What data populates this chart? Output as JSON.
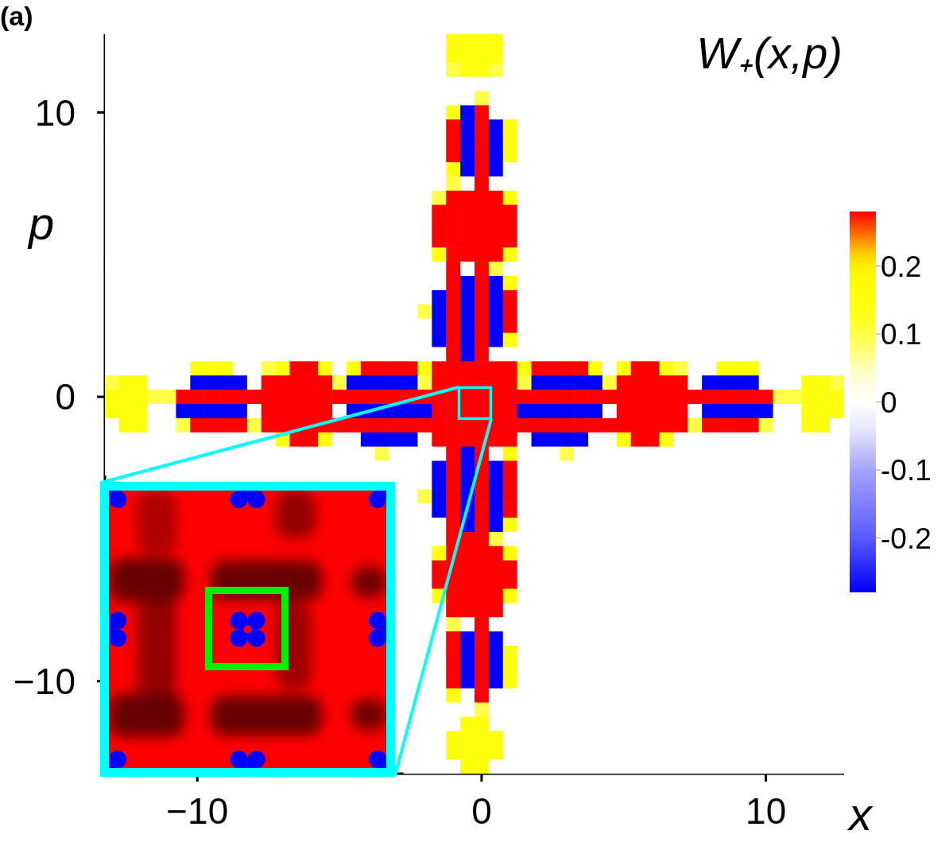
{
  "chart_data": {
    "type": "heatmap",
    "title": "W₊(x,p)",
    "xlabel": "x",
    "ylabel": "p",
    "annotations": [
      "(a)"
    ],
    "categories": [
      null,
      null,
      null,
      null,
      null,
      null,
      "−10",
      null,
      null,
      null,
      null,
      null,
      null,
      null,
      null,
      null,
      null,
      null,
      null,
      null,
      null,
      null,
      null,
      null,
      null,
      null,
      "0",
      null,
      null,
      null,
      null,
      null,
      null,
      null,
      null,
      null,
      null,
      null,
      null,
      null,
      null,
      null,
      null,
      null,
      null,
      null,
      "10",
      null,
      null,
      null,
      null,
      null
    ],
    "y_categories": [
      null,
      null,
      null,
      null,
      null,
      "10",
      null,
      null,
      null,
      null,
      null,
      null,
      null,
      null,
      null,
      null,
      null,
      null,
      null,
      null,
      null,
      null,
      null,
      null,
      null,
      "0",
      null,
      null,
      null,
      null,
      null,
      null,
      null,
      null,
      null,
      null,
      null,
      null,
      null,
      null,
      null,
      null,
      null,
      null,
      null,
      "−10",
      null,
      null,
      null,
      null,
      null,
      null
    ],
    "clim": [
      -0.28,
      0.28
    ],
    "cticks": [
      -0.2,
      -0.1,
      0,
      0.1,
      0.2
    ],
    "cells": [
      [
        0,
        0,
        0,
        0,
        0,
        0,
        0,
        0,
        0,
        0,
        0,
        0,
        0,
        0,
        0,
        0,
        0,
        0,
        0,
        0,
        0,
        0,
        0,
        0,
        0.15,
        0.15,
        0.15,
        0.15,
        0,
        0,
        0,
        0,
        0,
        0,
        0,
        0,
        0,
        0,
        0,
        0,
        0,
        0,
        0,
        0,
        0,
        0,
        0,
        0,
        0,
        0,
        0,
        0
      ],
      [
        0,
        0,
        0,
        0,
        0,
        0,
        0,
        0,
        0,
        0,
        0,
        0,
        0,
        0,
        0,
        0,
        0,
        0,
        0,
        0,
        0,
        0,
        0,
        0,
        0.15,
        0.15,
        0.15,
        0.15,
        0,
        0,
        0,
        0,
        0,
        0,
        0,
        0,
        0,
        0,
        0,
        0,
        0,
        0,
        0,
        0,
        0,
        0,
        0,
        null,
        0,
        0,
        0,
        0
      ],
      [
        0,
        0,
        0,
        0,
        0,
        0,
        0,
        0,
        0,
        0,
        0,
        0,
        0,
        0,
        0,
        0,
        0,
        0,
        0,
        0,
        0,
        0,
        0,
        0,
        0.1,
        0.15,
        0.15,
        0.1,
        0,
        0,
        0,
        0,
        0,
        0,
        0,
        0,
        0,
        0,
        0,
        0,
        0,
        0,
        0,
        0,
        0,
        0,
        0,
        0,
        0,
        0,
        0,
        0
      ],
      [
        0,
        0,
        0,
        0,
        0,
        0,
        0,
        0,
        0,
        0,
        0,
        0,
        0,
        0,
        0,
        0,
        0,
        0,
        0,
        0,
        0,
        0,
        0,
        0,
        0,
        0,
        0,
        0,
        0,
        0,
        0,
        0,
        0,
        0,
        0,
        0,
        0,
        0,
        0,
        0,
        0,
        0,
        0,
        0,
        0,
        0,
        0,
        0,
        0,
        0,
        0,
        0
      ],
      [
        0,
        0,
        0,
        0,
        0,
        0,
        0,
        0,
        0,
        0,
        0,
        0,
        0,
        0,
        0,
        0,
        0,
        0,
        0,
        0,
        0,
        0,
        0,
        0,
        0,
        0,
        0.1,
        0,
        0,
        0,
        0,
        0,
        0,
        0,
        0,
        0,
        0,
        0,
        0,
        0,
        0,
        0,
        0,
        0,
        0,
        0,
        0,
        0,
        0,
        0,
        0,
        0
      ],
      [
        0,
        0,
        0,
        0,
        0,
        0,
        0,
        0,
        0,
        0,
        0,
        0,
        0,
        0,
        0,
        0,
        0,
        0,
        0,
        0,
        0,
        0,
        0,
        0,
        0.15,
        -0.28,
        0.28,
        0,
        0,
        0,
        0,
        0,
        0,
        0,
        0,
        0,
        0,
        0,
        0,
        0,
        0,
        0,
        0,
        0,
        0,
        0,
        0,
        0,
        0,
        0,
        0,
        0
      ],
      [
        0,
        0,
        0,
        0,
        0,
        0,
        0,
        0,
        0,
        0,
        0,
        0,
        0,
        0,
        0,
        0,
        0,
        0,
        0,
        0,
        0,
        0,
        0,
        0,
        0.28,
        -0.28,
        0.28,
        -0.28,
        0.15,
        0,
        0,
        0,
        0,
        0,
        0,
        0,
        0,
        0,
        0,
        0,
        0,
        0,
        0,
        0,
        0,
        0,
        0,
        0,
        0,
        0,
        0,
        0
      ],
      [
        0,
        0,
        0,
        0,
        0,
        0,
        0,
        0,
        0,
        0,
        0,
        0,
        0,
        0,
        0,
        0,
        0,
        0,
        0,
        0,
        0,
        0,
        0,
        0,
        0.28,
        -0.28,
        0.28,
        -0.28,
        0.15,
        0,
        0,
        0,
        0,
        0,
        0,
        0,
        0,
        0,
        0,
        0,
        0,
        0,
        0,
        0,
        0,
        0,
        0,
        0,
        0,
        0,
        0,
        0
      ],
      [
        0,
        0,
        0,
        0,
        0,
        0,
        0,
        0,
        0,
        0,
        0,
        0,
        0,
        0,
        0,
        0,
        0,
        0,
        0,
        0,
        0,
        0,
        0,
        0,
        0.28,
        -0.28,
        0.28,
        -0.28,
        0.15,
        0,
        0,
        0,
        0,
        0,
        0,
        0,
        0,
        0,
        0,
        0,
        0,
        0,
        0,
        0,
        0,
        0,
        0,
        0,
        0,
        0,
        0,
        0
      ],
      [
        0,
        0,
        0,
        0,
        0,
        0,
        0,
        0,
        0,
        0,
        0,
        0,
        0,
        0,
        0,
        0,
        0,
        0,
        0,
        0,
        0,
        0,
        0,
        0,
        0.15,
        -0.28,
        0.28,
        -0.28,
        0,
        0,
        0,
        0,
        0,
        0,
        0,
        0,
        0,
        0,
        0,
        0,
        0,
        0,
        0,
        0,
        0,
        0,
        0,
        0,
        0,
        0,
        0,
        0
      ],
      [
        0,
        0,
        0,
        0,
        0,
        0,
        0,
        0,
        0,
        0,
        0,
        0,
        0,
        0,
        0,
        0,
        0,
        0,
        0,
        0,
        0,
        0,
        0,
        0,
        0.1,
        0,
        0.28,
        0,
        0,
        0,
        0,
        0,
        0,
        0,
        0,
        0,
        0,
        0,
        0,
        0,
        0,
        0,
        0,
        0,
        0,
        0,
        0,
        0,
        0,
        0,
        0,
        0
      ],
      [
        0,
        0,
        0,
        0,
        0,
        0,
        0,
        0,
        0,
        0,
        0,
        0,
        0,
        0,
        0,
        0,
        0,
        0,
        0,
        0,
        0,
        0,
        0,
        0.1,
        0.28,
        0.28,
        0.28,
        0.28,
        0.15,
        0,
        0,
        0,
        0,
        0,
        0,
        0,
        0,
        0,
        0,
        0,
        0,
        0,
        0,
        0,
        0,
        0,
        0,
        0,
        0,
        0,
        0,
        0
      ],
      [
        0,
        0,
        0,
        0,
        0,
        0,
        0,
        0,
        0,
        0,
        0,
        0,
        0,
        0,
        0,
        0,
        0,
        0,
        0,
        0,
        0,
        0,
        0,
        0.28,
        0.28,
        0.28,
        0.28,
        0.28,
        0.28,
        0,
        0,
        0,
        0,
        0,
        0,
        0,
        0,
        0,
        0,
        0,
        0,
        0,
        0,
        0,
        0,
        0,
        0,
        0,
        0,
        0,
        0,
        0
      ],
      [
        0,
        0,
        0,
        0,
        0,
        0,
        0,
        0,
        0,
        0,
        0,
        0,
        0,
        0,
        0,
        0,
        0,
        0,
        0,
        0,
        0,
        0,
        0,
        0.28,
        0.28,
        0.28,
        0.28,
        0.28,
        0.28,
        0,
        0,
        0,
        0,
        0,
        0,
        0,
        0,
        0,
        0,
        0,
        0,
        0,
        0,
        0,
        0,
        0,
        0,
        0,
        0,
        0,
        0,
        0
      ],
      [
        0,
        0,
        0,
        0,
        0,
        0,
        0,
        0,
        0,
        0,
        0,
        0,
        0,
        0,
        0,
        0,
        0,
        0,
        0,
        0,
        0,
        0,
        0,
        0.28,
        0.28,
        0.28,
        0.28,
        0.28,
        0.28,
        0,
        0,
        0,
        0,
        0,
        0,
        0,
        0,
        0,
        0,
        0,
        0,
        0,
        0,
        0,
        0,
        0,
        0,
        0,
        0,
        0,
        0,
        0
      ],
      [
        0,
        0,
        0,
        0,
        0,
        0,
        0,
        0,
        0,
        0,
        0,
        0,
        0,
        0,
        0,
        0,
        0,
        0,
        0,
        0,
        0,
        0,
        0,
        0.15,
        0.28,
        0.28,
        0.28,
        0.28,
        0.15,
        0,
        0,
        0,
        0,
        0,
        0,
        0,
        0,
        0,
        0,
        0,
        0,
        0,
        0,
        0,
        0,
        0,
        0,
        0,
        0,
        0,
        0,
        0
      ],
      [
        0,
        0,
        0,
        0,
        0,
        0,
        0,
        0,
        0,
        0,
        0,
        0,
        0,
        0,
        0,
        0,
        0,
        0,
        0,
        0,
        0,
        0,
        0,
        0,
        0.28,
        0,
        0.28,
        0.1,
        0,
        0,
        0,
        0,
        0,
        0,
        0,
        0,
        0,
        0,
        0,
        0,
        0,
        0,
        0,
        0,
        0,
        0,
        0,
        0,
        0,
        0,
        0,
        0
      ],
      [
        0,
        0,
        0,
        0,
        0,
        0,
        0,
        0,
        0,
        0,
        0,
        0,
        0,
        0,
        0,
        0,
        0,
        0,
        0,
        0,
        0,
        0,
        0,
        0,
        0.28,
        -0.28,
        0.28,
        -0.28,
        0.15,
        0,
        0,
        0,
        0,
        0,
        0,
        0,
        0,
        0,
        0,
        0,
        0,
        0,
        0,
        0,
        0,
        0,
        0,
        0,
        0,
        0,
        0,
        0
      ],
      [
        0,
        0,
        0,
        0,
        0,
        0,
        0,
        0,
        0,
        0,
        0,
        0,
        0,
        0,
        0,
        0,
        0,
        0,
        0,
        0,
        0,
        0,
        0,
        -0.28,
        0.28,
        -0.28,
        0.28,
        -0.28,
        0.28,
        0,
        0,
        0,
        0,
        0,
        0,
        0,
        0,
        0,
        0,
        0,
        0,
        0,
        0,
        0,
        0,
        0,
        0,
        0,
        0,
        0,
        0,
        0
      ],
      [
        0,
        0,
        0,
        0,
        0,
        0,
        0,
        0,
        0,
        0,
        0,
        0,
        0,
        0,
        0,
        0,
        0,
        0,
        0,
        0,
        0,
        0,
        0.1,
        -0.28,
        0.28,
        -0.28,
        0.28,
        -0.28,
        0.28,
        0,
        0,
        0,
        0,
        0,
        0,
        0,
        0,
        0,
        0,
        0,
        0,
        0,
        0,
        0,
        0,
        0,
        0,
        0,
        0,
        0,
        0,
        0
      ],
      [
        0,
        0,
        0,
        0,
        0,
        0,
        0,
        0,
        0,
        0,
        0,
        0,
        0,
        0,
        0,
        0,
        0,
        0,
        0,
        0,
        0,
        0,
        0,
        -0.28,
        0.28,
        -0.28,
        0.28,
        -0.28,
        0.28,
        0,
        0,
        0,
        0,
        0,
        0,
        0,
        0,
        0,
        0,
        0,
        0,
        0,
        0,
        0,
        0,
        0,
        0,
        0,
        0,
        0,
        0,
        0
      ],
      [
        0,
        0,
        0,
        0,
        0,
        0,
        0,
        0,
        0,
        0,
        0,
        0,
        0,
        0,
        0,
        0,
        0,
        0,
        0,
        0,
        0,
        0,
        0,
        -0.28,
        0.28,
        -0.28,
        0.28,
        -0.28,
        0.15,
        0,
        0,
        0,
        0,
        0,
        0,
        0,
        0,
        0,
        0,
        0,
        0,
        0,
        0,
        0,
        0,
        0,
        0,
        0,
        0,
        0,
        0,
        0
      ],
      [
        0,
        0,
        0,
        0,
        0,
        0,
        0,
        0,
        0,
        0,
        0,
        0,
        0,
        0,
        0,
        0,
        0,
        0,
        0,
        0,
        0,
        0,
        0,
        0,
        0.28,
        -0.28,
        0.28,
        0,
        0,
        0,
        0,
        0,
        0,
        0,
        0,
        0,
        0,
        0,
        0,
        0,
        0,
        0,
        0,
        0,
        0,
        0,
        0,
        0,
        0,
        0,
        0,
        0
      ],
      [
        0,
        0,
        0,
        0,
        0,
        0,
        0.15,
        0.15,
        0.15,
        0,
        0,
        0.1,
        0.15,
        0.28,
        0.28,
        0.15,
        0,
        0.15,
        0.28,
        0.28,
        0.28,
        0.28,
        0.15,
        0.28,
        0.28,
        0.28,
        0.28,
        0.28,
        0.28,
        0.15,
        0.28,
        0.28,
        0.28,
        0.28,
        0.15,
        0,
        0.15,
        0.28,
        0.28,
        0.15,
        0.1,
        0,
        0,
        0.15,
        0.15,
        0.15,
        0,
        0,
        0,
        0,
        0,
        0
      ],
      [
        0.1,
        0.15,
        0.15,
        0,
        0,
        0,
        -0.28,
        -0.28,
        -0.28,
        -0.28,
        0,
        0.28,
        0.28,
        0.28,
        0.28,
        0.28,
        0.1,
        -0.28,
        -0.28,
        -0.28,
        -0.28,
        -0.28,
        0.1,
        0.28,
        0.28,
        0.28,
        0.28,
        0.28,
        0.28,
        0.1,
        -0.28,
        -0.28,
        -0.28,
        -0.28,
        -0.28,
        0.1,
        0.28,
        0.28,
        0.28,
        0.28,
        0.28,
        0,
        -0.28,
        -0.28,
        -0.28,
        -0.28,
        0,
        0,
        0,
        0.15,
        0.15,
        0.1
      ],
      [
        0.15,
        0.15,
        0.15,
        0.1,
        0.1,
        0.28,
        0.28,
        0.28,
        0.28,
        0.28,
        0.28,
        0.28,
        0.28,
        0.28,
        0.28,
        0.28,
        0.28,
        0.28,
        0.28,
        0.28,
        0.28,
        0.28,
        0.28,
        0.28,
        0.28,
        0.28,
        0.28,
        0.28,
        0.28,
        0.28,
        0.28,
        0.28,
        0.28,
        0.28,
        0.28,
        0.28,
        0.28,
        0.28,
        0.28,
        0.28,
        0.28,
        0.28,
        0.28,
        0.28,
        0.28,
        0.28,
        0.28,
        0.1,
        0.1,
        0.15,
        0.15,
        0.15
      ],
      [
        0.15,
        0.15,
        0.15,
        0,
        0,
        -0.28,
        -0.28,
        -0.28,
        -0.28,
        -0.28,
        0,
        0.28,
        0.28,
        0.28,
        0.28,
        0.28,
        0,
        -0.28,
        -0.28,
        -0.28,
        -0.28,
        -0.28,
        -0.28,
        0.28,
        0.28,
        0.28,
        0.28,
        0.28,
        0.28,
        -0.28,
        -0.28,
        -0.28,
        -0.28,
        -0.28,
        -0.28,
        0,
        0.28,
        0.28,
        0.28,
        0.28,
        0.28,
        0,
        -0.28,
        -0.28,
        -0.28,
        -0.28,
        -0.28,
        0,
        0,
        0.15,
        0.15,
        0.15
      ],
      [
        0,
        0.15,
        0.15,
        0,
        0,
        0.1,
        0.28,
        0.28,
        0.28,
        0.28,
        0.1,
        0.28,
        0.28,
        0.28,
        0.28,
        0.28,
        0.28,
        0.28,
        0.28,
        0.28,
        0.28,
        0.28,
        0.28,
        0.28,
        0.28,
        0.28,
        0.28,
        0.28,
        0.28,
        0.28,
        0.28,
        0.28,
        0.28,
        0.28,
        0.28,
        0.28,
        0.28,
        0.28,
        0.28,
        0.28,
        0.28,
        0.1,
        0.28,
        0.28,
        0.28,
        0.28,
        0.1,
        0,
        0,
        0.15,
        0.15,
        0
      ],
      [
        0,
        0,
        0,
        0,
        0,
        0,
        0,
        0,
        0,
        0,
        0,
        0,
        0.15,
        0.28,
        0.28,
        0.15,
        0,
        0,
        -0.28,
        -0.28,
        -0.28,
        -0.28,
        0,
        0.28,
        0.28,
        0.28,
        0.28,
        0.28,
        0.28,
        0,
        -0.28,
        -0.28,
        -0.28,
        -0.28,
        0,
        0,
        0.15,
        0.28,
        0.28,
        0.15,
        0,
        0,
        0,
        0,
        0,
        0,
        0,
        0,
        0,
        0,
        0,
        0
      ],
      [
        0,
        0,
        0,
        0,
        0,
        0,
        0,
        0,
        0,
        0,
        0,
        0,
        0,
        0,
        0,
        0,
        0,
        0,
        0,
        0.1,
        0,
        0,
        0,
        0,
        0.28,
        -0.28,
        0.28,
        0,
        0.15,
        0,
        0,
        0,
        0.1,
        0,
        0,
        0,
        0,
        0,
        0,
        0,
        0,
        0,
        0,
        0,
        0,
        0,
        0,
        0,
        0,
        0,
        0,
        0
      ],
      [
        0,
        0,
        0,
        0,
        0,
        0,
        0,
        0,
        0,
        0,
        0,
        0,
        0,
        0,
        0,
        0,
        0,
        0,
        0,
        0,
        0,
        0,
        0,
        -0.28,
        0.28,
        -0.28,
        0.28,
        -0.28,
        0.28,
        0,
        0,
        0,
        0,
        0,
        0,
        0,
        0,
        0,
        0,
        0,
        0,
        0,
        0,
        0,
        0,
        0,
        0,
        0,
        0,
        0,
        0,
        0
      ],
      [
        null,
        null,
        null,
        null,
        null,
        null,
        null,
        null,
        null,
        null,
        null,
        null,
        null,
        null,
        null,
        null,
        null,
        null,
        null,
        null,
        0,
        0,
        0,
        -0.28,
        0.28,
        -0.28,
        0.28,
        -0.28,
        0.28,
        0,
        0,
        0,
        0,
        0,
        0,
        0,
        0,
        0,
        0,
        0,
        0,
        0,
        0,
        0,
        0,
        0,
        0,
        0,
        0,
        0,
        0,
        0
      ],
      [
        null,
        null,
        null,
        null,
        null,
        null,
        null,
        null,
        null,
        null,
        null,
        null,
        null,
        null,
        null,
        null,
        null,
        null,
        null,
        null,
        0,
        0,
        0.1,
        -0.28,
        0.28,
        -0.28,
        0.28,
        -0.28,
        0.28,
        0,
        0,
        0,
        0,
        0,
        0,
        0,
        0,
        0,
        0,
        0,
        0,
        0,
        0,
        0,
        0,
        0,
        0,
        0,
        0,
        0,
        0,
        0
      ],
      [
        null,
        null,
        null,
        null,
        null,
        null,
        null,
        null,
        null,
        null,
        null,
        null,
        null,
        null,
        null,
        null,
        null,
        null,
        null,
        null,
        0,
        0,
        0,
        -0.28,
        0.28,
        -0.28,
        0.28,
        -0.28,
        0.28,
        0,
        0,
        0,
        0,
        0,
        0,
        0,
        0,
        0,
        0,
        0,
        0,
        0,
        0,
        0,
        0,
        0,
        0,
        0,
        0,
        0,
        0,
        0
      ],
      [
        null,
        null,
        null,
        null,
        null,
        null,
        null,
        null,
        null,
        null,
        null,
        null,
        null,
        null,
        null,
        null,
        null,
        null,
        null,
        null,
        0,
        0,
        0,
        0,
        0.28,
        -0.28,
        0.28,
        -0.28,
        0.15,
        0,
        0,
        0,
        0,
        0,
        0,
        0,
        0,
        0,
        0,
        0,
        0,
        0,
        0,
        0,
        0,
        0,
        0,
        0,
        0,
        0,
        0,
        0
      ],
      [
        null,
        null,
        null,
        null,
        null,
        null,
        null,
        null,
        null,
        null,
        null,
        null,
        null,
        null,
        null,
        null,
        null,
        null,
        null,
        null,
        0,
        0,
        0,
        0,
        0.28,
        0.28,
        0.28,
        0.1,
        0,
        0,
        0,
        0,
        0,
        0,
        0,
        0,
        0,
        0,
        0,
        0,
        0,
        0,
        0,
        0,
        0,
        0,
        0,
        0,
        0,
        0,
        0,
        0
      ],
      [
        null,
        null,
        null,
        null,
        null,
        null,
        null,
        null,
        null,
        null,
        null,
        null,
        null,
        null,
        null,
        null,
        null,
        null,
        null,
        null,
        0,
        0,
        0,
        0.15,
        0.28,
        0.28,
        0.28,
        0.28,
        0.15,
        0,
        0,
        0,
        0,
        0,
        0,
        0,
        0,
        0,
        0,
        0,
        0,
        0,
        0,
        0,
        0,
        0,
        0,
        0,
        0,
        0,
        0,
        0
      ],
      [
        null,
        null,
        null,
        null,
        null,
        null,
        null,
        null,
        null,
        null,
        null,
        null,
        null,
        null,
        null,
        null,
        null,
        null,
        null,
        null,
        0,
        0,
        0,
        0.28,
        0.28,
        0.28,
        0.28,
        0.28,
        0.28,
        0,
        0,
        0,
        0,
        0,
        0,
        0,
        0,
        0,
        0,
        0,
        0,
        0,
        0,
        0,
        0,
        0,
        0,
        0,
        0,
        0,
        0,
        0
      ],
      [
        null,
        null,
        null,
        null,
        null,
        null,
        null,
        null,
        null,
        null,
        null,
        null,
        null,
        null,
        null,
        null,
        null,
        null,
        null,
        null,
        0,
        0,
        0,
        0.28,
        0.28,
        0.28,
        0.28,
        0.28,
        0.28,
        0,
        0,
        0,
        0,
        0,
        0,
        0,
        0,
        0,
        0,
        0,
        0,
        0,
        0,
        0,
        0,
        0,
        0,
        0,
        0,
        0,
        0,
        0
      ],
      [
        null,
        null,
        null,
        null,
        null,
        null,
        null,
        null,
        null,
        null,
        null,
        null,
        null,
        null,
        null,
        null,
        null,
        null,
        null,
        null,
        0,
        0,
        0,
        0.15,
        0.28,
        0.28,
        0.28,
        0.28,
        0.15,
        0,
        0,
        0,
        0,
        0,
        0,
        0,
        0,
        0,
        0,
        0,
        0,
        0,
        0,
        0,
        0,
        0,
        0,
        0,
        0,
        0,
        0,
        0
      ],
      [
        null,
        null,
        null,
        null,
        null,
        null,
        null,
        null,
        null,
        null,
        null,
        null,
        null,
        null,
        null,
        null,
        null,
        null,
        null,
        null,
        0,
        0,
        0,
        0,
        0.28,
        0.28,
        0.28,
        0.28,
        0,
        0,
        0,
        0,
        0,
        0,
        0,
        0,
        0,
        0,
        0,
        0,
        0,
        0,
        0,
        0,
        0,
        0,
        0,
        0,
        0,
        0,
        0,
        0
      ],
      [
        null,
        null,
        null,
        null,
        null,
        null,
        null,
        null,
        null,
        null,
        null,
        null,
        null,
        null,
        null,
        null,
        null,
        null,
        null,
        null,
        0,
        0,
        0,
        0,
        0.1,
        0,
        0.28,
        0,
        0,
        0,
        0,
        0,
        0,
        0,
        0,
        0,
        0,
        0,
        0,
        0,
        0,
        0,
        0,
        0,
        0,
        0,
        0,
        0,
        0,
        0,
        0,
        0
      ],
      [
        null,
        null,
        null,
        null,
        null,
        null,
        null,
        null,
        null,
        null,
        null,
        null,
        null,
        null,
        null,
        null,
        null,
        null,
        null,
        null,
        0,
        0,
        0,
        0,
        0.28,
        -0.28,
        0.28,
        -0.28,
        0,
        0,
        0,
        0,
        0,
        0,
        0,
        0,
        0,
        0,
        0,
        0,
        0,
        0,
        0,
        0,
        0,
        0,
        0,
        0,
        0,
        0,
        0,
        0
      ],
      [
        null,
        null,
        null,
        null,
        null,
        null,
        null,
        null,
        null,
        null,
        null,
        null,
        null,
        null,
        null,
        null,
        null,
        null,
        null,
        null,
        0,
        0,
        0,
        0,
        0.28,
        -0.28,
        0.28,
        -0.28,
        0.15,
        0,
        0,
        0,
        0,
        0,
        0,
        0,
        0,
        0,
        0,
        0,
        0,
        0,
        0,
        0,
        0,
        0,
        0,
        0,
        0,
        0,
        0,
        0
      ],
      [
        null,
        null,
        null,
        null,
        null,
        null,
        null,
        null,
        null,
        null,
        null,
        null,
        null,
        null,
        null,
        null,
        null,
        null,
        null,
        null,
        0,
        0,
        0,
        0,
        0.28,
        -0.28,
        0.28,
        -0.28,
        0.15,
        0,
        0,
        0,
        0,
        0,
        0,
        0,
        0,
        0,
        0,
        0,
        0,
        0,
        0,
        0,
        0,
        0,
        0,
        0,
        0,
        0,
        0,
        0
      ],
      [
        null,
        null,
        null,
        null,
        null,
        null,
        null,
        null,
        null,
        null,
        null,
        null,
        null,
        null,
        null,
        null,
        null,
        null,
        null,
        null,
        0,
        0,
        0,
        0,
        0.28,
        -0.28,
        0.28,
        -0.28,
        0.15,
        0,
        0,
        0,
        0,
        0,
        0,
        0,
        0,
        0,
        0,
        0,
        0,
        0,
        0,
        0,
        0,
        0,
        0,
        0,
        0,
        0,
        0,
        0
      ],
      [
        null,
        null,
        null,
        null,
        null,
        null,
        null,
        null,
        null,
        null,
        null,
        null,
        null,
        null,
        null,
        null,
        null,
        null,
        null,
        null,
        0,
        0,
        0,
        0,
        0.15,
        0,
        0.28,
        0,
        0,
        0,
        0,
        0,
        0,
        0,
        0,
        0,
        0,
        0,
        0,
        0,
        0,
        0,
        0,
        0,
        0,
        0,
        0,
        0,
        0,
        0,
        0,
        0
      ],
      [
        null,
        null,
        null,
        null,
        null,
        null,
        null,
        null,
        null,
        null,
        null,
        null,
        null,
        null,
        null,
        null,
        null,
        null,
        null,
        null,
        0,
        0,
        0,
        0,
        0,
        0,
        0.1,
        0,
        0,
        0,
        0,
        0,
        0,
        0,
        0,
        0,
        0,
        0,
        0,
        0,
        0,
        0,
        0,
        0,
        0,
        0,
        0,
        0,
        0,
        0,
        0,
        0
      ],
      [
        null,
        null,
        null,
        null,
        null,
        null,
        null,
        null,
        null,
        null,
        null,
        null,
        null,
        null,
        null,
        null,
        null,
        null,
        null,
        null,
        0,
        0,
        0,
        0,
        0,
        0.15,
        0.15,
        0,
        0,
        0,
        0,
        0,
        0,
        0,
        0,
        0,
        0,
        0,
        0,
        0,
        0,
        0,
        0,
        0,
        0,
        0,
        0,
        0,
        0,
        0,
        0,
        0
      ],
      [
        null,
        null,
        null,
        null,
        null,
        null,
        null,
        null,
        null,
        null,
        null,
        null,
        null,
        null,
        null,
        null,
        null,
        null,
        null,
        null,
        0,
        0,
        0,
        0,
        0.15,
        0.15,
        0.15,
        0.15,
        0,
        0,
        0,
        0,
        0,
        0,
        0,
        0,
        0,
        0,
        0,
        0,
        0,
        0,
        0,
        0,
        0,
        0,
        0,
        0,
        0,
        0,
        0,
        0
      ],
      [
        null,
        null,
        null,
        null,
        null,
        null,
        null,
        null,
        null,
        null,
        null,
        null,
        null,
        null,
        null,
        null,
        null,
        null,
        null,
        null,
        null,
        0,
        0,
        0,
        0.15,
        0.15,
        0.15,
        0.15,
        0,
        0,
        0,
        0,
        0,
        0,
        0,
        0,
        0,
        0,
        0,
        0,
        0,
        0,
        0,
        0,
        0,
        0,
        0,
        0,
        0,
        0,
        0,
        0
      ],
      [
        null,
        null,
        null,
        null,
        null,
        null,
        null,
        null,
        null,
        null,
        null,
        null,
        null,
        null,
        null,
        null,
        null,
        null,
        null,
        null,
        null,
        0,
        0,
        0,
        0,
        0.15,
        0.15,
        0,
        0,
        0,
        0,
        0,
        0,
        0,
        0,
        0,
        0,
        0,
        0,
        0,
        0,
        0,
        0,
        0,
        0,
        0,
        0,
        0,
        0,
        0,
        0,
        0
      ]
    ]
  }
}
